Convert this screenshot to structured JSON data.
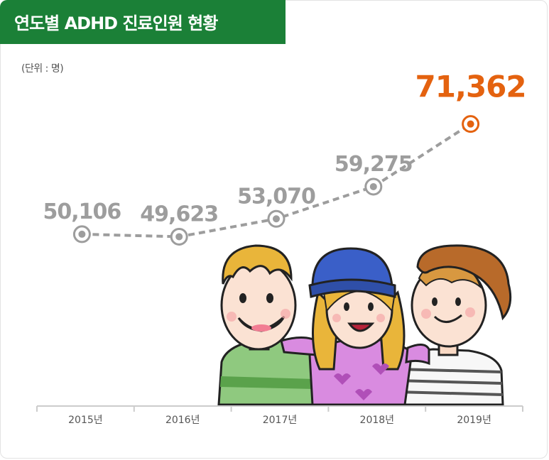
{
  "title": "연도별 ADHD 진료인원 현황",
  "unit": "(단위 : 명)",
  "colors": {
    "title_bg": "#1b8037",
    "series": "#9d9d9d",
    "highlight": "#e4620f",
    "axis": "#cccccc"
  },
  "chart_data": {
    "type": "line",
    "categories": [
      "2015년",
      "2016년",
      "2017년",
      "2018년",
      "2019년"
    ],
    "values": [
      50106,
      49623,
      53070,
      59275,
      71362
    ],
    "value_labels": [
      "50,106",
      "49,623",
      "53,070",
      "59,275",
      "71,362"
    ],
    "highlight_index": 4,
    "line_style": "dashed",
    "grid": false,
    "legend": "none"
  }
}
